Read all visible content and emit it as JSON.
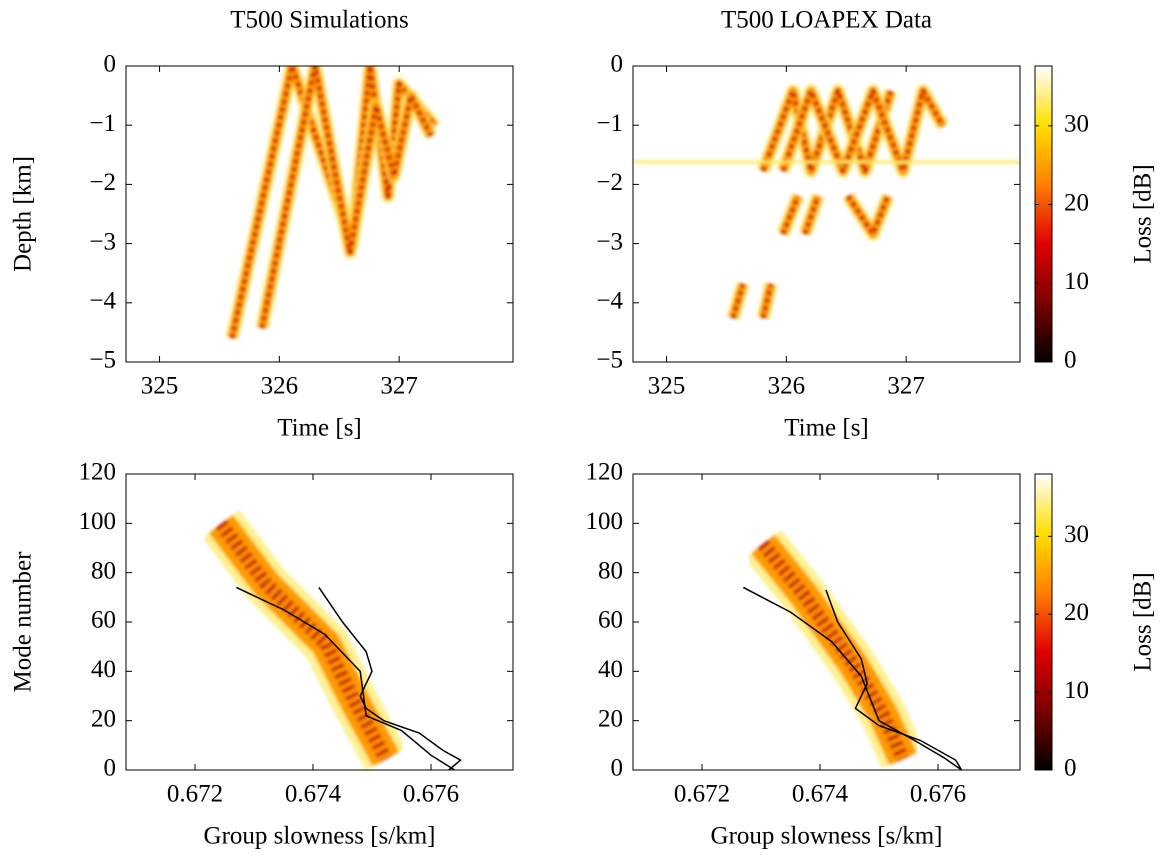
{
  "chart_data": [
    {
      "type": "heatmap",
      "title": "T500 Simulations",
      "x_label": "Time [s]",
      "y_label": "Depth [km]",
      "xlim": [
        324.72,
        327.95
      ],
      "ylim": [
        -5,
        0
      ],
      "xticks": [
        325,
        326,
        327
      ],
      "yticks": [
        {
          "value": -5,
          "label": "−5"
        },
        {
          "value": -4,
          "label": "−4"
        },
        {
          "value": -3,
          "label": "−3"
        },
        {
          "value": -2,
          "label": "−2"
        },
        {
          "value": -1,
          "label": "−1"
        },
        0
      ]
    },
    {
      "type": "heatmap",
      "title": "T500 LOAPEX Data",
      "x_label": "Time [s]",
      "xlim": [
        324.72,
        327.95
      ],
      "ylim": [
        -5,
        0
      ],
      "xticks": [
        325,
        326,
        327
      ],
      "yticks": [
        {
          "value": -5,
          "label": "−5"
        },
        {
          "value": -4,
          "label": "−4"
        },
        {
          "value": -3,
          "label": "−3"
        },
        {
          "value": -2,
          "label": "−2"
        },
        {
          "value": -1,
          "label": "−1"
        },
        0
      ],
      "colorbar": {
        "label": "Loss [dB]",
        "clim": [
          0,
          37.6
        ],
        "ticks": [
          0,
          10,
          20,
          30
        ]
      }
    },
    {
      "type": "heatmap",
      "x_label": "Group slowness [s/km]",
      "y_label": "Mode number",
      "xlim": [
        0.67083,
        0.67739
      ],
      "ylim": [
        0,
        120
      ],
      "xticks": [
        0.672,
        0.674,
        0.676
      ],
      "yticks": [
        0,
        20,
        40,
        60,
        80,
        100,
        120
      ],
      "series": [
        {
          "color": "#000000",
          "x": [
            0.6727,
            0.6735,
            0.6742,
            0.6748,
            0.6749,
            0.6755,
            0.676,
            0.6764
          ],
          "values": [
            74,
            65,
            55,
            40,
            22,
            16,
            6,
            0
          ]
        },
        {
          "color": "#000000",
          "x": [
            0.6741,
            0.6745,
            0.6749,
            0.675,
            0.6748,
            0.6749,
            0.6752,
            0.6758,
            0.6762,
            0.6765,
            0.6763
          ],
          "values": [
            74,
            60,
            48,
            40,
            30,
            25,
            20,
            15,
            8,
            4,
            0
          ]
        }
      ]
    },
    {
      "type": "heatmap",
      "x_label": "Group slowness [s/km]",
      "xlim": [
        0.67083,
        0.67739
      ],
      "ylim": [
        0,
        120
      ],
      "xticks": [
        0.672,
        0.674,
        0.676
      ],
      "yticks": [
        0,
        20,
        40,
        60,
        80,
        100,
        120
      ],
      "colorbar": {
        "label": "Loss [dB]",
        "clim": [
          0,
          38
        ],
        "ticks": [
          0,
          10,
          20,
          30
        ]
      },
      "series": [
        {
          "color": "#000000",
          "x": [
            0.6727,
            0.6735,
            0.6742,
            0.6747,
            0.675,
            0.6756,
            0.6761,
            0.6764
          ],
          "values": [
            74,
            64,
            52,
            38,
            20,
            12,
            5,
            0
          ]
        },
        {
          "color": "#000000",
          "x": [
            0.6741,
            0.6743,
            0.6747,
            0.6748,
            0.6746,
            0.675,
            0.6757,
            0.6763,
            0.6764
          ],
          "values": [
            73,
            60,
            45,
            35,
            25,
            18,
            12,
            4,
            0
          ]
        }
      ]
    }
  ]
}
